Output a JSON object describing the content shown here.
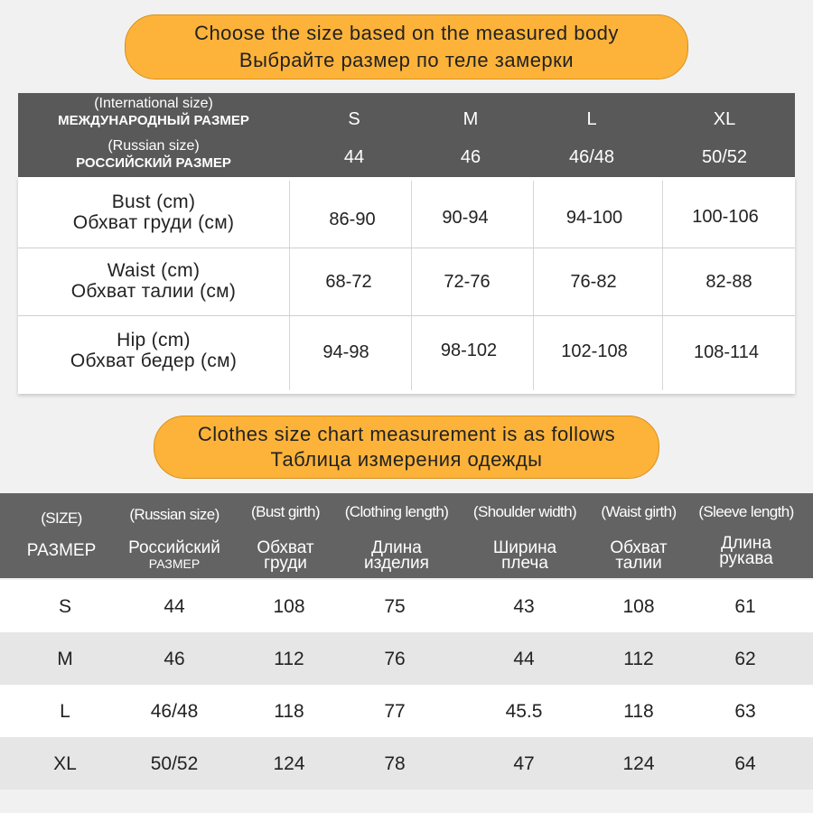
{
  "banner1": {
    "line_en": "Choose the size based on the measured body",
    "line_ru": "Выбрайте размер по теле замерки"
  },
  "table1": {
    "header": {
      "intl_label_en": "(International size)",
      "intl_label_ru": "МЕЖДУНАРОДНЫЙ РАЗМЕР",
      "ru_label_en": "(Russian size)",
      "ru_label_ru": "РОССИЙСКИЙ РАЗМЕР",
      "sizes": [
        "S",
        "M",
        "L",
        "XL"
      ],
      "russian_sizes": [
        "44",
        "46",
        "46/48",
        "50/52"
      ]
    },
    "rows": [
      {
        "label_en": "Bust (cm)",
        "label_ru": "Обхват груди (см)",
        "values": [
          "86-90",
          "90-94",
          "94-100",
          "100-106"
        ]
      },
      {
        "label_en": "Waist (cm)",
        "label_ru": "Обхват талии (см)",
        "values": [
          "68-72",
          "72-76",
          "76-82",
          "82-88"
        ]
      },
      {
        "label_en": "Hip (cm)",
        "label_ru": "Обхват бедер (см)",
        "values": [
          "94-98",
          "98-102",
          "102-108",
          "108-114"
        ]
      }
    ]
  },
  "banner2": {
    "line_en": "Clothes size chart measurement is as follows",
    "line_ru": "Таблица измерения одежды"
  },
  "table2": {
    "columns": [
      {
        "en": "(SIZE)",
        "ru": "РАЗМЕР"
      },
      {
        "en": "(Russian size)",
        "ru": "Российский",
        "ru_sub": "РАЗМЕР"
      },
      {
        "en": "(Bust girth)",
        "ru": "Обхват",
        "ru2": "груди"
      },
      {
        "en": "(Clothing length)",
        "ru": "Длина",
        "ru2": "изделия"
      },
      {
        "en": "(Shoulder width)",
        "ru": "Ширина",
        "ru2": "плеча"
      },
      {
        "en": "(Waist girth)",
        "ru": "Обхват",
        "ru2": "талии"
      },
      {
        "en": "(Sleeve length)",
        "ru": "Длина",
        "ru2": "рукава"
      }
    ],
    "rows": [
      [
        "S",
        "44",
        "108",
        "75",
        "43",
        "108",
        "61"
      ],
      [
        "M",
        "46",
        "112",
        "76",
        "44",
        "112",
        "62"
      ],
      [
        "L",
        "46/48",
        "118",
        "77",
        "45.5",
        "118",
        "63"
      ],
      [
        "XL",
        "50/52",
        "124",
        "78",
        "47",
        "124",
        "64"
      ]
    ]
  },
  "colors": {
    "banner": "#fdb33a",
    "header_dark": "#595959",
    "row_alt": "#e6e6e6"
  }
}
